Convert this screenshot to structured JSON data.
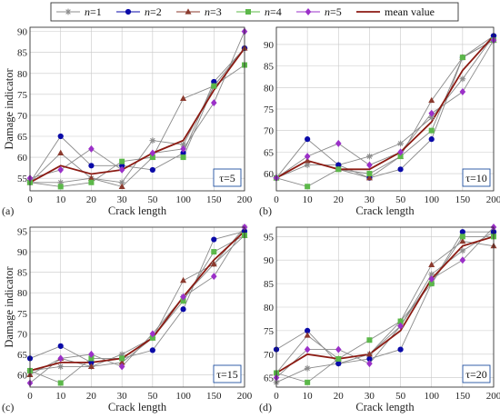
{
  "legend": {
    "entries": [
      {
        "prefix": "n",
        "suffix": "=1",
        "marker": "star",
        "color": "#8c8c8c"
      },
      {
        "prefix": "n",
        "suffix": "=2",
        "marker": "circle",
        "color": "#0a0aa8"
      },
      {
        "prefix": "n",
        "suffix": "=3",
        "marker": "triangle",
        "color": "#8b3a2e"
      },
      {
        "prefix": "n",
        "suffix": "=4",
        "marker": "square",
        "color": "#5cb84a"
      },
      {
        "prefix": "n",
        "suffix": "=5",
        "marker": "diamond",
        "color": "#9b30c8"
      },
      {
        "prefix": "",
        "suffix": "mean value",
        "marker": "line",
        "color": "#8b1a12"
      }
    ]
  },
  "chart_data": [
    {
      "panel": "(a)",
      "type": "line",
      "tau_label": "τ=5",
      "xlabel": "Crack length",
      "ylabel": "Damage indicator",
      "categories": [
        "0",
        "10",
        "20",
        "30",
        "50",
        "100",
        "150",
        "200"
      ],
      "ylim": [
        52,
        91
      ],
      "yticks": [
        "55",
        "60",
        "65",
        "70",
        "75",
        "80",
        "85",
        "90"
      ],
      "series": [
        {
          "values": [
            54,
            54,
            55,
            54,
            64,
            63,
            77,
            86
          ]
        },
        {
          "values": [
            54,
            65,
            58,
            58,
            57,
            61,
            78,
            86
          ]
        },
        {
          "values": [
            54,
            61,
            55,
            53,
            60,
            74,
            77,
            86
          ]
        },
        {
          "values": [
            54,
            53,
            54,
            59,
            60,
            60,
            77,
            82
          ]
        },
        {
          "values": [
            55,
            57,
            62,
            57,
            61,
            62,
            73,
            90
          ]
        },
        {
          "values": [
            54,
            58,
            56,
            57,
            61,
            64,
            76,
            86
          ]
        }
      ]
    },
    {
      "panel": "(b)",
      "type": "line",
      "tau_label": "τ=10",
      "xlabel": "Crack length",
      "ylabel": "",
      "categories": [
        "0",
        "10",
        "20",
        "30",
        "50",
        "100",
        "150",
        "200"
      ],
      "ylim": [
        56,
        94
      ],
      "yticks": [
        "60",
        "65",
        "70",
        "75",
        "80",
        "85",
        "90"
      ],
      "series": [
        {
          "values": [
            59,
            62,
            62,
            64,
            67,
            73,
            82,
            92
          ]
        },
        {
          "values": [
            59,
            68,
            62,
            59,
            61,
            68,
            87,
            92
          ]
        },
        {
          "values": [
            59,
            63,
            61,
            59,
            64,
            77,
            87,
            91
          ]
        },
        {
          "values": [
            59,
            57,
            61,
            60,
            64,
            70,
            87,
            91
          ]
        },
        {
          "values": [
            59,
            64,
            67,
            62,
            65,
            74,
            79,
            91
          ]
        },
        {
          "values": [
            59,
            63,
            61,
            61,
            65,
            72,
            84,
            92
          ]
        }
      ]
    },
    {
      "panel": "(c)",
      "type": "line",
      "tau_label": "τ=15",
      "xlabel": "Crack length",
      "ylabel": "Damage indicator",
      "categories": [
        "0",
        "10",
        "20",
        "30",
        "50",
        "100",
        "150",
        "200"
      ],
      "ylim": [
        57,
        96
      ],
      "yticks": [
        "60",
        "65",
        "70",
        "75",
        "80",
        "85",
        "90",
        "95"
      ],
      "series": [
        {
          "values": [
            61,
            62,
            62,
            65,
            69,
            79,
            87,
            96
          ]
        },
        {
          "values": [
            64,
            67,
            63,
            64,
            66,
            76,
            93,
            95
          ]
        },
        {
          "values": [
            60,
            64,
            62,
            63,
            69,
            83,
            87,
            94
          ]
        },
        {
          "values": [
            61,
            58,
            64,
            64,
            69,
            78,
            90,
            94
          ]
        },
        {
          "values": [
            58,
            64,
            65,
            62,
            70,
            79,
            84,
            96
          ]
        },
        {
          "values": [
            61,
            63,
            63,
            64,
            69,
            79,
            88,
            95
          ]
        }
      ]
    },
    {
      "panel": "(d)",
      "type": "line",
      "tau_label": "τ=20",
      "xlabel": "Crack length",
      "ylabel": "",
      "categories": [
        "0",
        "10",
        "20",
        "30",
        "50",
        "100",
        "150",
        "200"
      ],
      "ylim": [
        63,
        97
      ],
      "yticks": [
        "65",
        "70",
        "75",
        "80",
        "85",
        "90",
        "95"
      ],
      "series": [
        {
          "values": [
            64,
            67,
            68,
            70,
            76,
            87,
            92,
            96
          ]
        },
        {
          "values": [
            71,
            75,
            68,
            69,
            71,
            85,
            96,
            96
          ]
        },
        {
          "values": [
            66,
            74,
            69,
            70,
            77,
            89,
            94,
            93
          ]
        },
        {
          "values": [
            66,
            64,
            69,
            73,
            77,
            85,
            95,
            95
          ]
        },
        {
          "values": [
            65,
            71,
            71,
            68,
            76,
            86,
            90,
            97
          ]
        },
        {
          "values": [
            66,
            70,
            69,
            70,
            75,
            86,
            93,
            95
          ]
        }
      ]
    }
  ]
}
